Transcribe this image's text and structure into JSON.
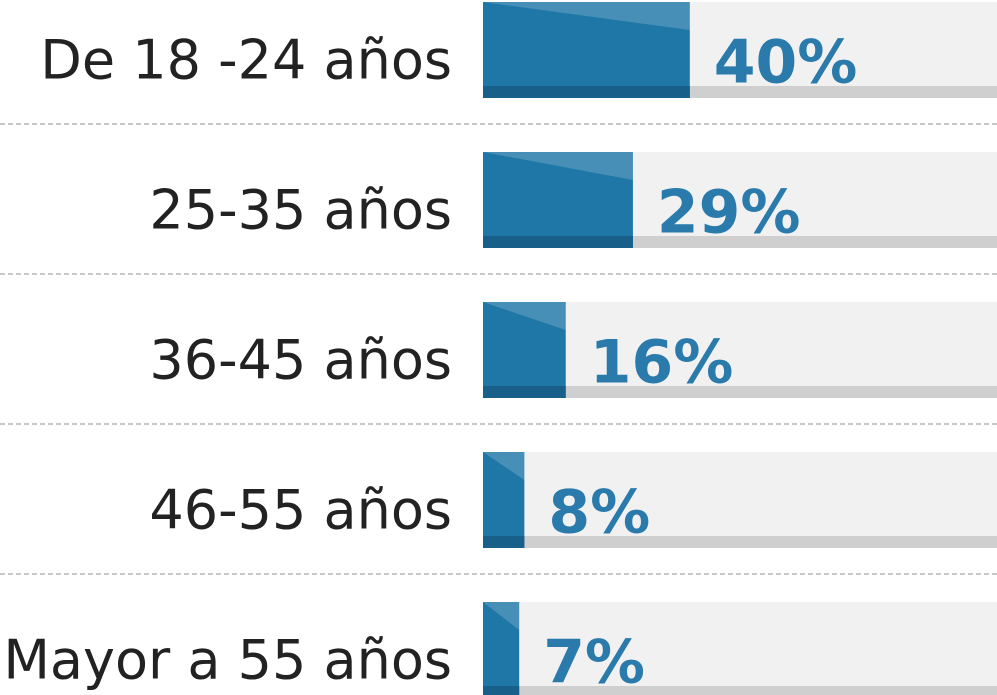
{
  "chart_data": {
    "type": "bar",
    "orientation": "horizontal",
    "categories": [
      "De 18 -24 años",
      "25-35 años",
      "36-45 años",
      "46-55 años",
      "Mayor a 55 años"
    ],
    "values": [
      40,
      29,
      16,
      8,
      7
    ],
    "value_labels": [
      "40%",
      "29%",
      "16%",
      "8%",
      "7%"
    ],
    "color": "#1f77a8",
    "xlim": [
      0,
      100
    ]
  }
}
